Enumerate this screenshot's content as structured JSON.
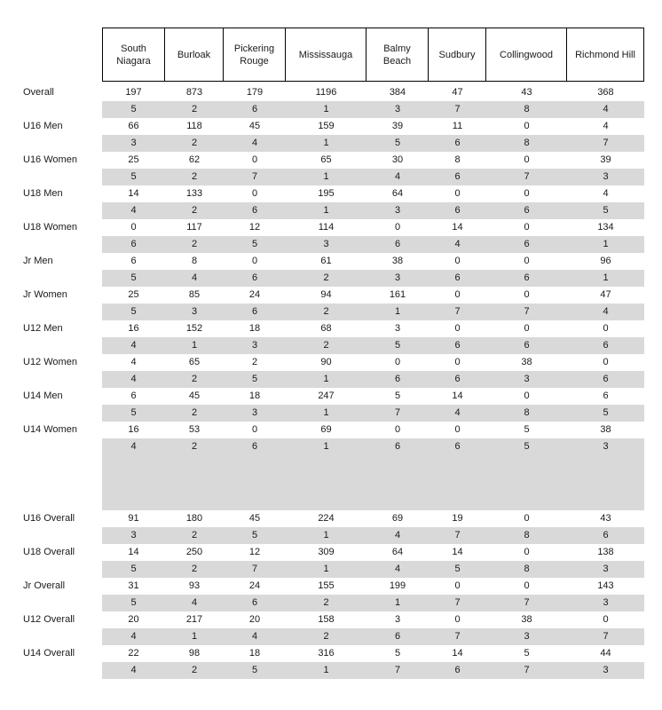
{
  "table": {
    "columns": [
      "South Niagara",
      "Burloak",
      "Pickering Rouge",
      "Mississauga",
      "Balmy Beach",
      "Sudbury",
      "Collingwood",
      "Richmond Hill"
    ],
    "sections": [
      {
        "name": "age-group-breakdown",
        "groups": [
          {
            "label": "Overall",
            "values": [
              "197",
              "873",
              "179",
              "1196",
              "384",
              "47",
              "43",
              "368"
            ],
            "ranks": [
              "5",
              "2",
              "6",
              "1",
              "3",
              "7",
              "8",
              "4"
            ]
          },
          {
            "label": "U16 Men",
            "values": [
              "66",
              "118",
              "45",
              "159",
              "39",
              "11",
              "0",
              "4"
            ],
            "ranks": [
              "3",
              "2",
              "4",
              "1",
              "5",
              "6",
              "8",
              "7"
            ]
          },
          {
            "label": "U16 Women",
            "values": [
              "25",
              "62",
              "0",
              "65",
              "30",
              "8",
              "0",
              "39"
            ],
            "ranks": [
              "5",
              "2",
              "7",
              "1",
              "4",
              "6",
              "7",
              "3"
            ]
          },
          {
            "label": "U18 Men",
            "values": [
              "14",
              "133",
              "0",
              "195",
              "64",
              "0",
              "0",
              "4"
            ],
            "ranks": [
              "4",
              "2",
              "6",
              "1",
              "3",
              "6",
              "6",
              "5"
            ]
          },
          {
            "label": "U18 Women",
            "values": [
              "0",
              "117",
              "12",
              "114",
              "0",
              "14",
              "0",
              "134"
            ],
            "ranks": [
              "6",
              "2",
              "5",
              "3",
              "6",
              "4",
              "6",
              "1"
            ]
          },
          {
            "label": "Jr Men",
            "values": [
              "6",
              "8",
              "0",
              "61",
              "38",
              "0",
              "0",
              "96"
            ],
            "ranks": [
              "5",
              "4",
              "6",
              "2",
              "3",
              "6",
              "6",
              "1"
            ]
          },
          {
            "label": "Jr Women",
            "values": [
              "25",
              "85",
              "24",
              "94",
              "161",
              "0",
              "0",
              "47"
            ],
            "ranks": [
              "5",
              "3",
              "6",
              "2",
              "1",
              "7",
              "7",
              "4"
            ]
          },
          {
            "label": "U12 Men",
            "values": [
              "16",
              "152",
              "18",
              "68",
              "3",
              "0",
              "0",
              "0"
            ],
            "ranks": [
              "4",
              "1",
              "3",
              "2",
              "5",
              "6",
              "6",
              "6"
            ]
          },
          {
            "label": "U12 Women",
            "values": [
              "4",
              "65",
              "2",
              "90",
              "0",
              "0",
              "38",
              "0"
            ],
            "ranks": [
              "4",
              "2",
              "5",
              "1",
              "6",
              "6",
              "3",
              "6"
            ]
          },
          {
            "label": "U14 Men",
            "values": [
              "6",
              "45",
              "18",
              "247",
              "5",
              "14",
              "0",
              "6"
            ],
            "ranks": [
              "5",
              "2",
              "3",
              "1",
              "7",
              "4",
              "8",
              "5"
            ]
          },
          {
            "label": "U14 Women",
            "values": [
              "16",
              "53",
              "0",
              "69",
              "0",
              "0",
              "5",
              "38"
            ],
            "ranks": [
              "4",
              "2",
              "6",
              "1",
              "6",
              "6",
              "5",
              "3"
            ]
          }
        ]
      },
      {
        "name": "category-overalls",
        "groups": [
          {
            "label": "U16 Overall",
            "values": [
              "91",
              "180",
              "45",
              "224",
              "69",
              "19",
              "0",
              "43"
            ],
            "ranks": [
              "3",
              "2",
              "5",
              "1",
              "4",
              "7",
              "8",
              "6"
            ]
          },
          {
            "label": "U18 Overall",
            "values": [
              "14",
              "250",
              "12",
              "309",
              "64",
              "14",
              "0",
              "138"
            ],
            "ranks": [
              "5",
              "2",
              "7",
              "1",
              "4",
              "5",
              "8",
              "3"
            ]
          },
          {
            "label": "Jr Overall",
            "values": [
              "31",
              "93",
              "24",
              "155",
              "199",
              "0",
              "0",
              "143"
            ],
            "ranks": [
              "5",
              "4",
              "6",
              "2",
              "1",
              "7",
              "7",
              "3"
            ]
          },
          {
            "label": "U12 Overall",
            "values": [
              "20",
              "217",
              "20",
              "158",
              "3",
              "0",
              "38",
              "0"
            ],
            "ranks": [
              "4",
              "1",
              "4",
              "2",
              "6",
              "7",
              "3",
              "7"
            ]
          },
          {
            "label": "U14 Overall",
            "values": [
              "22",
              "98",
              "18",
              "316",
              "5",
              "14",
              "5",
              "44"
            ],
            "ranks": [
              "4",
              "2",
              "5",
              "1",
              "7",
              "6",
              "7",
              "3"
            ]
          }
        ]
      }
    ]
  },
  "colors": {
    "rank_band": "#d9d9d9",
    "header_border": "#000000",
    "text": "#1a1a1a"
  }
}
